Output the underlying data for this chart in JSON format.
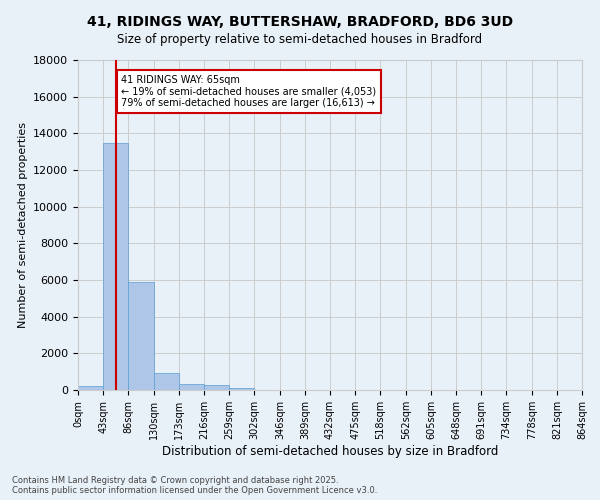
{
  "title1": "41, RIDINGS WAY, BUTTERSHAW, BRADFORD, BD6 3UD",
  "title2": "Size of property relative to semi-detached houses in Bradford",
  "xlabel": "Distribution of semi-detached houses by size in Bradford",
  "ylabel": "Number of semi-detached properties",
  "annotation_line1": "41 RIDINGS WAY: 65sqm",
  "annotation_line2": "← 19% of semi-detached houses are smaller (4,053)",
  "annotation_line3": "79% of semi-detached houses are larger (16,613) →",
  "bar_edges": [
    0,
    43,
    86,
    130,
    173,
    216,
    259,
    302,
    346,
    389,
    432,
    475,
    518,
    562,
    605,
    648,
    691,
    734,
    778,
    821,
    864
  ],
  "bar_heights": [
    200,
    13500,
    5900,
    950,
    330,
    280,
    130,
    0,
    0,
    0,
    0,
    0,
    0,
    0,
    0,
    0,
    0,
    0,
    0,
    0
  ],
  "bar_color": "#aec6e8",
  "bar_edgecolor": "#5a9fd4",
  "vline_x": 65,
  "vline_color": "#cc0000",
  "annotation_box_color": "#cc0000",
  "grid_color": "#cccccc",
  "background_color": "#e8f0f8",
  "ylim": [
    0,
    18000
  ],
  "yticks": [
    0,
    2000,
    4000,
    6000,
    8000,
    10000,
    12000,
    14000,
    16000,
    18000
  ],
  "tick_labels": [
    "0sqm",
    "43sqm",
    "86sqm",
    "130sqm",
    "173sqm",
    "216sqm",
    "259sqm",
    "302sqm",
    "346sqm",
    "389sqm",
    "432sqm",
    "475sqm",
    "518sqm",
    "562sqm",
    "605sqm",
    "648sqm",
    "691sqm",
    "734sqm",
    "778sqm",
    "821sqm",
    "864sqm"
  ],
  "footnote1": "Contains HM Land Registry data © Crown copyright and database right 2025.",
  "footnote2": "Contains public sector information licensed under the Open Government Licence v3.0."
}
